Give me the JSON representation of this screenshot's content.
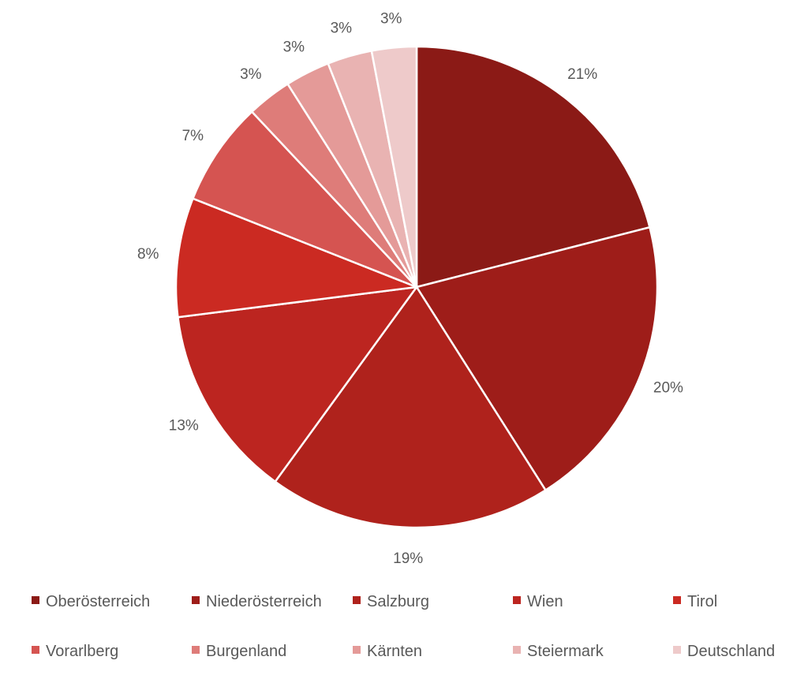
{
  "chart_data": {
    "type": "pie",
    "title": "",
    "legend_position": "bottom",
    "slices": [
      {
        "name": "Oberösterreich",
        "value": 21,
        "label": "21%",
        "color": "#8B1A16"
      },
      {
        "name": "Niederösterreich",
        "value": 20,
        "label": "20%",
        "color": "#9E1D19"
      },
      {
        "name": "Salzburg",
        "value": 19,
        "label": "19%",
        "color": "#AF221C"
      },
      {
        "name": "Wien",
        "value": 13,
        "label": "13%",
        "color": "#BC2520"
      },
      {
        "name": "Tirol",
        "value": 8,
        "label": "8%",
        "color": "#CB2A22"
      },
      {
        "name": "Vorarlberg",
        "value": 7,
        "label": "7%",
        "color": "#D55451"
      },
      {
        "name": "Burgenland",
        "value": 3,
        "label": "3%",
        "color": "#DE7C79"
      },
      {
        "name": "Kärnten",
        "value": 3,
        "label": "3%",
        "color": "#E49A98"
      },
      {
        "name": "Steiermark",
        "value": 3,
        "label": "3%",
        "color": "#E9B3B2"
      },
      {
        "name": "Deutschland",
        "value": 3,
        "label": "3%",
        "color": "#EECACA"
      }
    ]
  }
}
